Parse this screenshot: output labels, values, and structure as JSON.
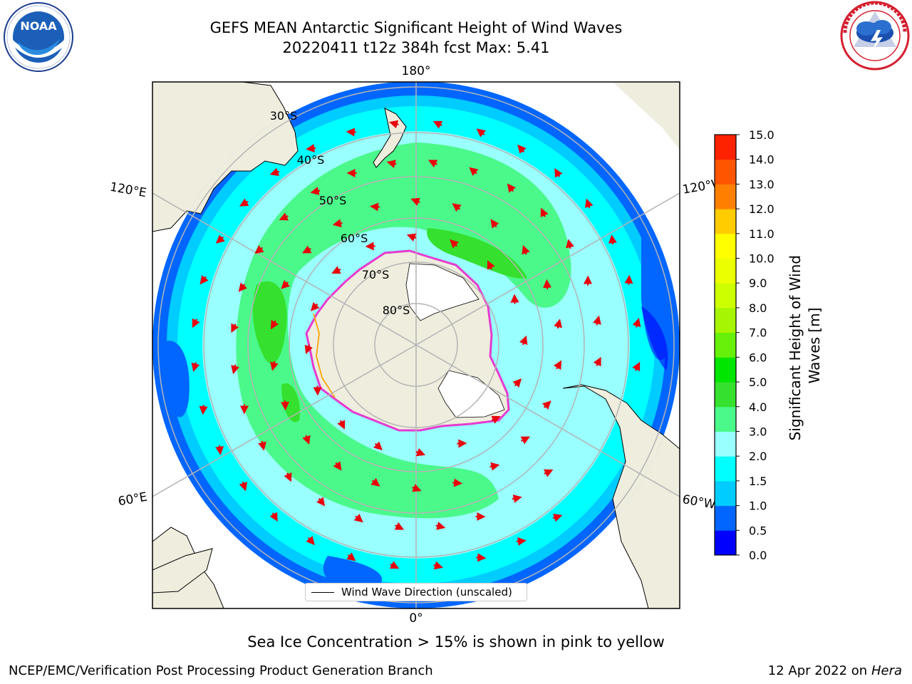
{
  "header": {
    "title_line1": "GEFS MEAN Antarctic Significant Height of Wind Waves",
    "title_line2": "20220411 t12z 384h fcst   Max: 5.41"
  },
  "logos": {
    "left": {
      "text": "NOAA",
      "ring_text": "NATIONAL OCEANIC AND ATMOSPHERIC ADMINISTRATION · U.S. DEPARTMENT OF COMMERCE"
    },
    "right": {
      "ring_text": "NATIONAL WEATHER SERVICE"
    }
  },
  "map": {
    "longitude_labels": {
      "top": "180°",
      "bottom": "0°",
      "left_upper": "120°E",
      "left_lower": "60°E",
      "right_upper": "120°W",
      "right_lower": "60°W"
    },
    "latitude_labels": [
      "30°S",
      "40°S",
      "50°S",
      "60°S",
      "70°S",
      "80°S"
    ],
    "legend": "Wind Wave Direction (unscaled)",
    "colors": {
      "land": "#efedde",
      "ice_edge": "#e53bd0",
      "arrow": "#e8000b",
      "graticule": "#b4b4b4"
    }
  },
  "colorbar": {
    "title_line1": "Significant Height of Wind",
    "title_line2": "Waves [m]",
    "ticks": [
      "0.0",
      "0.5",
      "1.0",
      "1.5",
      "2.0",
      "3.0",
      "4.0",
      "5.0",
      "6.0",
      "7.0",
      "8.0",
      "9.0",
      "10.0",
      "11.0",
      "12.0",
      "13.0",
      "14.0",
      "15.0"
    ],
    "colors": [
      "#0000ff",
      "#0066ff",
      "#00ccff",
      "#00ffff",
      "#99ffff",
      "#4bf88a",
      "#35e02e",
      "#00e600",
      "#66f00a",
      "#a6f502",
      "#ccff00",
      "#ebff00",
      "#ffff00",
      "#ffcc00",
      "#ff8000",
      "#ff5500",
      "#ff2200"
    ]
  },
  "caption": "Sea Ice Concentration > 15% is shown in pink to yellow",
  "footer": {
    "left": "NCEP/EMC/Verification Post Processing Product Generation Branch",
    "right_date": "12 Apr 2022 on ",
    "right_host": "Hera"
  }
}
